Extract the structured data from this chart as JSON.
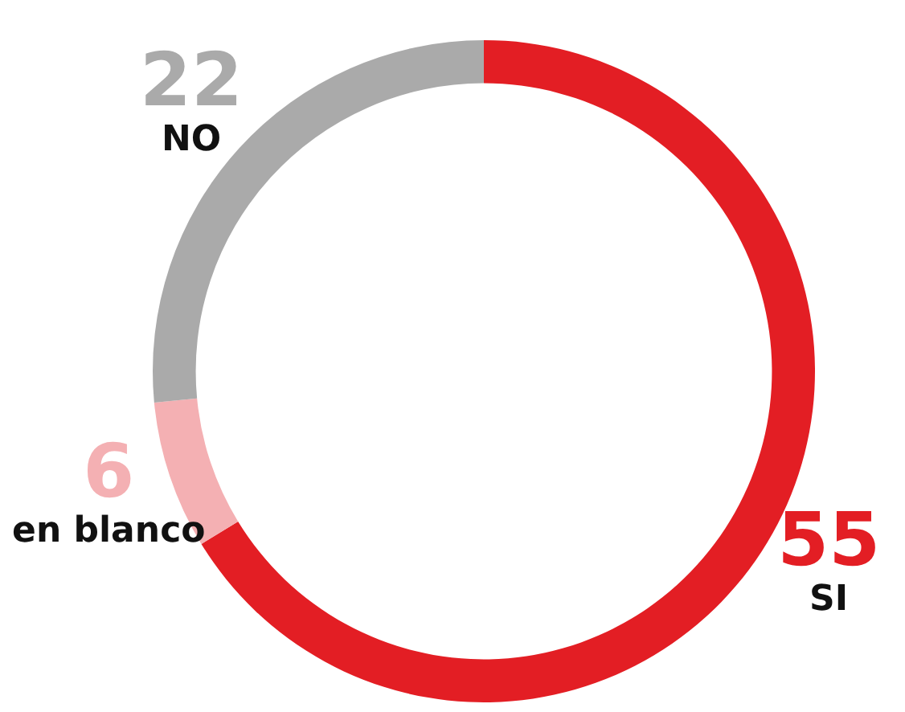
{
  "chart_data": {
    "type": "donut",
    "categories": [
      "SI",
      "en blanco",
      "NO"
    ],
    "values": [
      55,
      6,
      22
    ],
    "colors": [
      "#e31e24",
      "#f4b0b3",
      "#aaaaaa"
    ],
    "data_labels": true,
    "legend": false
  }
}
